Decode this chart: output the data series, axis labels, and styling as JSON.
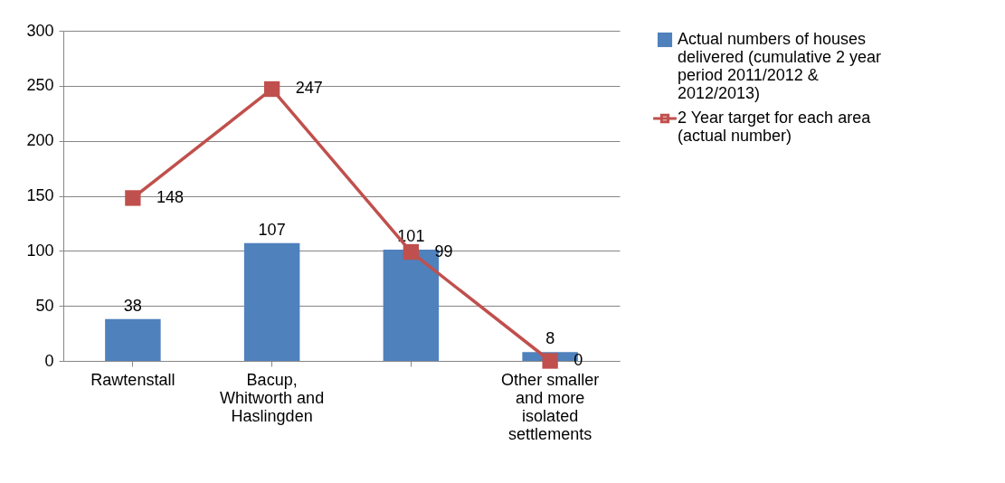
{
  "chart_data": {
    "type": "bar",
    "categories": [
      "Rawtenstall",
      "Bacup, Whitworth and Haslingden",
      null,
      "Other smaller and more isolated settlements"
    ],
    "series": [
      {
        "name": "Actual numbers of houses delivered (cumulative 2 year period 2011/2012 & 2012/2013)",
        "color": "#4f81bd",
        "values": [
          38,
          107,
          101,
          8
        ]
      },
      {
        "name": "2 Year target for each area (actual number)",
        "type": "line",
        "color": "#c0504d",
        "values": [
          148,
          247,
          99,
          0
        ]
      }
    ],
    "ylim": [
      0,
      300
    ],
    "yticks": [
      0,
      50,
      100,
      150,
      200,
      250,
      300
    ],
    "grid": "y",
    "legend": "right",
    "marker": "square",
    "data_labels": true
  }
}
